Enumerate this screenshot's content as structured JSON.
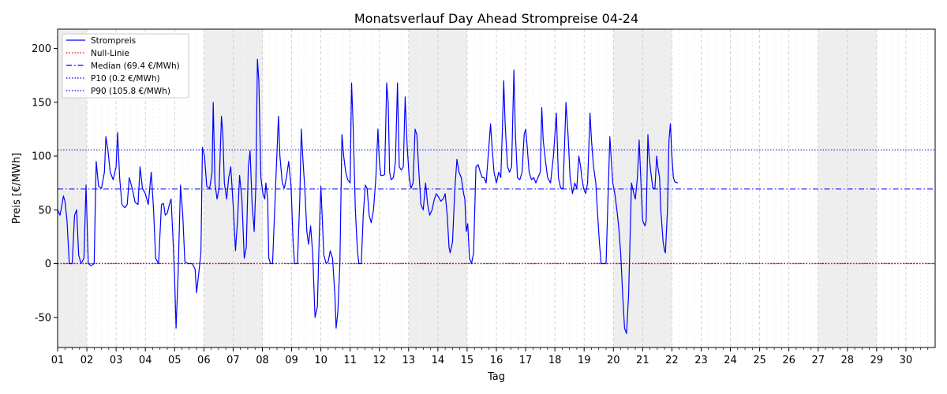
{
  "chart_data": {
    "type": "line",
    "title": "Monatsverlauf Day Ahead Strompreise 04-24",
    "xlabel": "Tag",
    "ylabel": "Preis [€/MWh]",
    "xlim": [
      1,
      31
    ],
    "ylim": [
      -78,
      218
    ],
    "yticks": [
      -50,
      0,
      50,
      100,
      150,
      200
    ],
    "xtick_labels": [
      "01",
      "02",
      "03",
      "04",
      "05",
      "06",
      "07",
      "08",
      "09",
      "10",
      "11",
      "12",
      "13",
      "14",
      "15",
      "16",
      "17",
      "18",
      "19",
      "20",
      "21",
      "22",
      "23",
      "24",
      "25",
      "26",
      "27",
      "28",
      "29",
      "30"
    ],
    "weekend_shading": [
      [
        1,
        2
      ],
      [
        6,
        8
      ],
      [
        13,
        15
      ],
      [
        20,
        22
      ],
      [
        27,
        29
      ]
    ],
    "grid": "vertical dashed",
    "legend_position": "top-left",
    "legend": [
      {
        "label": "Strompreis",
        "color": "#0000ff",
        "style": "solid"
      },
      {
        "label": "Null-Linie",
        "color": "#ff0000",
        "style": "dotted"
      },
      {
        "label": "Median (69.4 €/MWh)",
        "color": "#0000ff",
        "style": "dashdot"
      },
      {
        "label": "P10 (0.2 €/MWh)",
        "color": "#0000ff",
        "style": "dotted"
      },
      {
        "label": "P90 (105.8 €/MWh)",
        "color": "#0000ff",
        "style": "dotted"
      }
    ],
    "reference_lines": {
      "null": 0,
      "median": 69.4,
      "p10": 0.2,
      "p90": 105.8
    },
    "series": [
      {
        "name": "Strompreis",
        "color": "#0000ff",
        "points": [
          [
            1.0,
            50
          ],
          [
            1.08,
            45
          ],
          [
            1.15,
            55
          ],
          [
            1.2,
            63
          ],
          [
            1.25,
            58
          ],
          [
            1.32,
            40
          ],
          [
            1.4,
            0
          ],
          [
            1.5,
            0
          ],
          [
            1.58,
            45
          ],
          [
            1.65,
            50
          ],
          [
            1.72,
            8
          ],
          [
            1.8,
            0
          ],
          [
            1.9,
            5
          ],
          [
            1.97,
            73
          ],
          [
            2.05,
            0
          ],
          [
            2.15,
            -2
          ],
          [
            2.25,
            0
          ],
          [
            2.32,
            95
          ],
          [
            2.4,
            72
          ],
          [
            2.5,
            70
          ],
          [
            2.6,
            85
          ],
          [
            2.65,
            118
          ],
          [
            2.72,
            105
          ],
          [
            2.8,
            85
          ],
          [
            2.9,
            78
          ],
          [
            3.0,
            90
          ],
          [
            3.05,
            122
          ],
          [
            3.12,
            80
          ],
          [
            3.2,
            55
          ],
          [
            3.3,
            52
          ],
          [
            3.38,
            55
          ],
          [
            3.45,
            80
          ],
          [
            3.55,
            70
          ],
          [
            3.65,
            57
          ],
          [
            3.75,
            55
          ],
          [
            3.82,
            90
          ],
          [
            3.9,
            70
          ],
          [
            4.0,
            65
          ],
          [
            4.1,
            55
          ],
          [
            4.2,
            85
          ],
          [
            4.28,
            50
          ],
          [
            4.35,
            5
          ],
          [
            4.45,
            0
          ],
          [
            4.55,
            55
          ],
          [
            4.62,
            56
          ],
          [
            4.68,
            45
          ],
          [
            4.75,
            47
          ],
          [
            4.82,
            55
          ],
          [
            4.88,
            60
          ],
          [
            4.95,
            20
          ],
          [
            5.0,
            -15
          ],
          [
            5.05,
            -60
          ],
          [
            5.12,
            -10
          ],
          [
            5.2,
            73
          ],
          [
            5.28,
            45
          ],
          [
            5.35,
            2
          ],
          [
            5.45,
            0
          ],
          [
            5.6,
            0
          ],
          [
            5.7,
            -5
          ],
          [
            5.75,
            -27
          ],
          [
            5.82,
            -10
          ],
          [
            5.9,
            10
          ],
          [
            5.95,
            108
          ],
          [
            6.02,
            100
          ],
          [
            6.1,
            72
          ],
          [
            6.2,
            70
          ],
          [
            6.28,
            85
          ],
          [
            6.32,
            150
          ],
          [
            6.38,
            75
          ],
          [
            6.45,
            60
          ],
          [
            6.52,
            70
          ],
          [
            6.6,
            137
          ],
          [
            6.65,
            120
          ],
          [
            6.7,
            75
          ],
          [
            6.78,
            60
          ],
          [
            6.85,
            80
          ],
          [
            6.92,
            90
          ],
          [
            7.0,
            55
          ],
          [
            7.08,
            12
          ],
          [
            7.15,
            40
          ],
          [
            7.22,
            82
          ],
          [
            7.3,
            60
          ],
          [
            7.38,
            5
          ],
          [
            7.45,
            15
          ],
          [
            7.52,
            90
          ],
          [
            7.58,
            105
          ],
          [
            7.65,
            55
          ],
          [
            7.72,
            30
          ],
          [
            7.78,
            75
          ],
          [
            7.83,
            190
          ],
          [
            7.88,
            170
          ],
          [
            7.95,
            80
          ],
          [
            8.02,
            65
          ],
          [
            8.08,
            60
          ],
          [
            8.12,
            75
          ],
          [
            8.18,
            60
          ],
          [
            8.22,
            5
          ],
          [
            8.28,
            0
          ],
          [
            8.35,
            0
          ],
          [
            8.45,
            70
          ],
          [
            8.55,
            137
          ],
          [
            8.6,
            100
          ],
          [
            8.68,
            75
          ],
          [
            8.75,
            70
          ],
          [
            8.82,
            80
          ],
          [
            8.9,
            95
          ],
          [
            8.98,
            72
          ],
          [
            9.05,
            20
          ],
          [
            9.1,
            0
          ],
          [
            9.2,
            0
          ],
          [
            9.28,
            60
          ],
          [
            9.33,
            125
          ],
          [
            9.38,
            100
          ],
          [
            9.45,
            70
          ],
          [
            9.52,
            30
          ],
          [
            9.58,
            18
          ],
          [
            9.65,
            35
          ],
          [
            9.72,
            10
          ],
          [
            9.8,
            -50
          ],
          [
            9.88,
            -40
          ],
          [
            9.95,
            30
          ],
          [
            10.0,
            72
          ],
          [
            10.05,
            40
          ],
          [
            10.1,
            8
          ],
          [
            10.18,
            0
          ],
          [
            10.25,
            2
          ],
          [
            10.32,
            12
          ],
          [
            10.4,
            5
          ],
          [
            10.48,
            -30
          ],
          [
            10.52,
            -60
          ],
          [
            10.58,
            -45
          ],
          [
            10.65,
            0
          ],
          [
            10.72,
            120
          ],
          [
            10.78,
            100
          ],
          [
            10.85,
            85
          ],
          [
            10.92,
            78
          ],
          [
            11.0,
            75
          ],
          [
            11.05,
            168
          ],
          [
            11.1,
            130
          ],
          [
            11.18,
            50
          ],
          [
            11.25,
            12
          ],
          [
            11.3,
            0
          ],
          [
            11.38,
            0
          ],
          [
            11.45,
            45
          ],
          [
            11.52,
            73
          ],
          [
            11.58,
            70
          ],
          [
            11.65,
            45
          ],
          [
            11.72,
            38
          ],
          [
            11.8,
            50
          ],
          [
            11.88,
            80
          ],
          [
            11.95,
            125
          ],
          [
            12.0,
            95
          ],
          [
            12.05,
            82
          ],
          [
            12.12,
            82
          ],
          [
            12.18,
            83
          ],
          [
            12.25,
            168
          ],
          [
            12.3,
            150
          ],
          [
            12.35,
            85
          ],
          [
            12.4,
            78
          ],
          [
            12.48,
            80
          ],
          [
            12.55,
            95
          ],
          [
            12.62,
            168
          ],
          [
            12.68,
            90
          ],
          [
            12.75,
            87
          ],
          [
            12.82,
            90
          ],
          [
            12.88,
            155
          ],
          [
            12.95,
            110
          ],
          [
            13.02,
            80
          ],
          [
            13.08,
            70
          ],
          [
            13.15,
            75
          ],
          [
            13.22,
            125
          ],
          [
            13.28,
            120
          ],
          [
            13.35,
            85
          ],
          [
            13.42,
            55
          ],
          [
            13.5,
            50
          ],
          [
            13.58,
            75
          ],
          [
            13.65,
            55
          ],
          [
            13.72,
            45
          ],
          [
            13.8,
            50
          ],
          [
            13.88,
            60
          ],
          [
            13.95,
            65
          ],
          [
            14.02,
            62
          ],
          [
            14.1,
            58
          ],
          [
            14.18,
            60
          ],
          [
            14.25,
            65
          ],
          [
            14.32,
            45
          ],
          [
            14.38,
            15
          ],
          [
            14.42,
            10
          ],
          [
            14.5,
            20
          ],
          [
            14.58,
            70
          ],
          [
            14.65,
            97
          ],
          [
            14.72,
            85
          ],
          [
            14.8,
            80
          ],
          [
            14.88,
            65
          ],
          [
            14.92,
            60
          ],
          [
            14.97,
            30
          ],
          [
            15.02,
            37
          ],
          [
            15.08,
            5
          ],
          [
            15.15,
            0
          ],
          [
            15.22,
            10
          ],
          [
            15.3,
            90
          ],
          [
            15.38,
            92
          ],
          [
            15.45,
            85
          ],
          [
            15.52,
            80
          ],
          [
            15.58,
            80
          ],
          [
            15.65,
            75
          ],
          [
            15.72,
            100
          ],
          [
            15.8,
            130
          ],
          [
            15.85,
            110
          ],
          [
            15.92,
            85
          ],
          [
            16.0,
            75
          ],
          [
            16.08,
            85
          ],
          [
            16.15,
            80
          ],
          [
            16.2,
            120
          ],
          [
            16.25,
            170
          ],
          [
            16.3,
            130
          ],
          [
            16.38,
            90
          ],
          [
            16.45,
            85
          ],
          [
            16.52,
            90
          ],
          [
            16.6,
            180
          ],
          [
            16.65,
            120
          ],
          [
            16.72,
            80
          ],
          [
            16.8,
            78
          ],
          [
            16.88,
            85
          ],
          [
            16.95,
            120
          ],
          [
            17.0,
            125
          ],
          [
            17.05,
            110
          ],
          [
            17.12,
            85
          ],
          [
            17.2,
            78
          ],
          [
            17.28,
            80
          ],
          [
            17.35,
            75
          ],
          [
            17.42,
            80
          ],
          [
            17.5,
            85
          ],
          [
            17.55,
            145
          ],
          [
            17.6,
            115
          ],
          [
            17.68,
            95
          ],
          [
            17.75,
            80
          ],
          [
            17.85,
            75
          ],
          [
            17.95,
            100
          ],
          [
            18.05,
            140
          ],
          [
            18.12,
            80
          ],
          [
            18.2,
            70
          ],
          [
            18.28,
            70
          ],
          [
            18.38,
            150
          ],
          [
            18.45,
            120
          ],
          [
            18.52,
            80
          ],
          [
            18.6,
            65
          ],
          [
            18.68,
            75
          ],
          [
            18.75,
            70
          ],
          [
            18.82,
            100
          ],
          [
            18.88,
            90
          ],
          [
            18.92,
            80
          ],
          [
            18.98,
            70
          ],
          [
            19.05,
            65
          ],
          [
            19.12,
            75
          ],
          [
            19.2,
            140
          ],
          [
            19.25,
            115
          ],
          [
            19.32,
            90
          ],
          [
            19.4,
            75
          ],
          [
            19.45,
            50
          ],
          [
            19.52,
            20
          ],
          [
            19.58,
            0
          ],
          [
            19.65,
            0
          ],
          [
            19.75,
            0
          ],
          [
            19.82,
            65
          ],
          [
            19.88,
            118
          ],
          [
            19.92,
            100
          ],
          [
            19.98,
            75
          ],
          [
            20.05,
            65
          ],
          [
            20.12,
            50
          ],
          [
            20.18,
            35
          ],
          [
            20.25,
            10
          ],
          [
            20.32,
            -30
          ],
          [
            20.38,
            -60
          ],
          [
            20.45,
            -65
          ],
          [
            20.52,
            -30
          ],
          [
            20.58,
            35
          ],
          [
            20.62,
            75
          ],
          [
            20.7,
            65
          ],
          [
            20.75,
            60
          ],
          [
            20.82,
            80
          ],
          [
            20.88,
            115
          ],
          [
            20.95,
            70
          ],
          [
            21.0,
            40
          ],
          [
            21.08,
            35
          ],
          [
            21.12,
            40
          ],
          [
            21.18,
            120
          ],
          [
            21.22,
            100
          ],
          [
            21.28,
            85
          ],
          [
            21.35,
            70
          ],
          [
            21.42,
            70
          ],
          [
            21.48,
            100
          ],
          [
            21.52,
            90
          ],
          [
            21.58,
            80
          ],
          [
            21.62,
            50
          ],
          [
            21.7,
            20
          ],
          [
            21.75,
            12
          ],
          [
            21.78,
            10
          ],
          [
            21.85,
            50
          ],
          [
            21.9,
            115
          ],
          [
            21.95,
            130
          ],
          [
            22.0,
            100
          ],
          [
            22.05,
            80
          ],
          [
            22.1,
            76
          ],
          [
            22.2,
            75
          ]
        ]
      }
    ]
  }
}
